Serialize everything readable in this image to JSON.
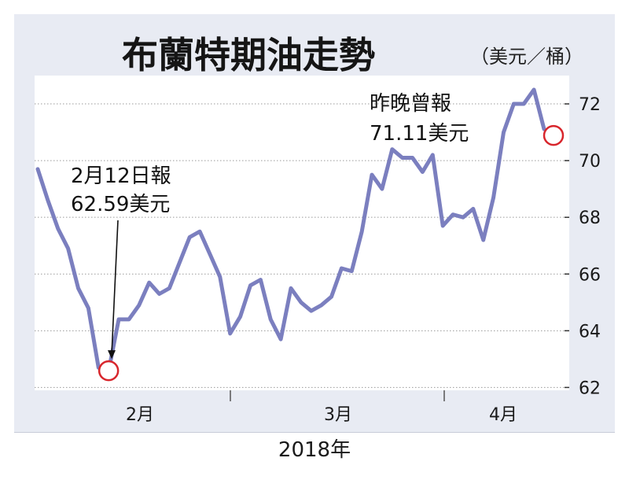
{
  "chart_data": {
    "type": "line",
    "title": "布蘭特期油走勢",
    "unit": "（美元／桶）",
    "xlabel": "2018年",
    "x_tick_labels": [
      "2月",
      "3月",
      "4月"
    ],
    "y_ticks": [
      62,
      64,
      66,
      68,
      70,
      72
    ],
    "ylim": [
      61.9,
      73.0
    ],
    "grid": true,
    "line_color": "#7b7fbf",
    "marker_color": "#d8262c",
    "series": [
      {
        "values": [
          69.7,
          68.6,
          67.6,
          66.9,
          65.5,
          64.8,
          62.7,
          62.59,
          64.4,
          64.4,
          64.9,
          65.7,
          65.3,
          65.5,
          66.4,
          67.3,
          67.5,
          66.7,
          65.9,
          63.9,
          64.5,
          65.6,
          65.8,
          64.4,
          63.7,
          65.5,
          65.0,
          64.7,
          64.9,
          65.2,
          66.2,
          66.1,
          67.5,
          69.5,
          69.0,
          70.4,
          70.1,
          70.1,
          69.6,
          70.2,
          67.7,
          68.1,
          68.0,
          68.3,
          67.2,
          68.7,
          71.0,
          72.0,
          72.0,
          72.5,
          71.11
        ]
      }
    ],
    "annotations": [
      {
        "lines": [
          "2月12日報",
          "62.59美元"
        ],
        "index": 7,
        "value": 62.59
      },
      {
        "lines": [
          "昨晚曾報",
          "71.11美元"
        ],
        "index": 50,
        "value": 71.11
      }
    ]
  }
}
